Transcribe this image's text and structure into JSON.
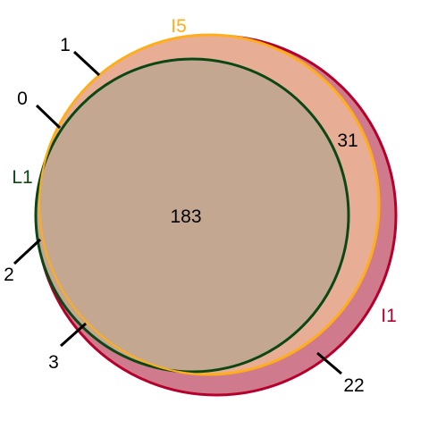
{
  "sets": {
    "I1": {
      "label": "I1",
      "color": "#b5002c"
    },
    "I5": {
      "label": "I5",
      "color": "#ffae1a"
    },
    "L1": {
      "label": "L1",
      "color": "#0b4714"
    }
  },
  "regions": {
    "all_three": "183",
    "i1_i5_only": "31",
    "i1_only": "22",
    "i1_l1_only": "3",
    "l1_only": "2",
    "i5_l1_only": "0",
    "i5_only": "1"
  }
}
